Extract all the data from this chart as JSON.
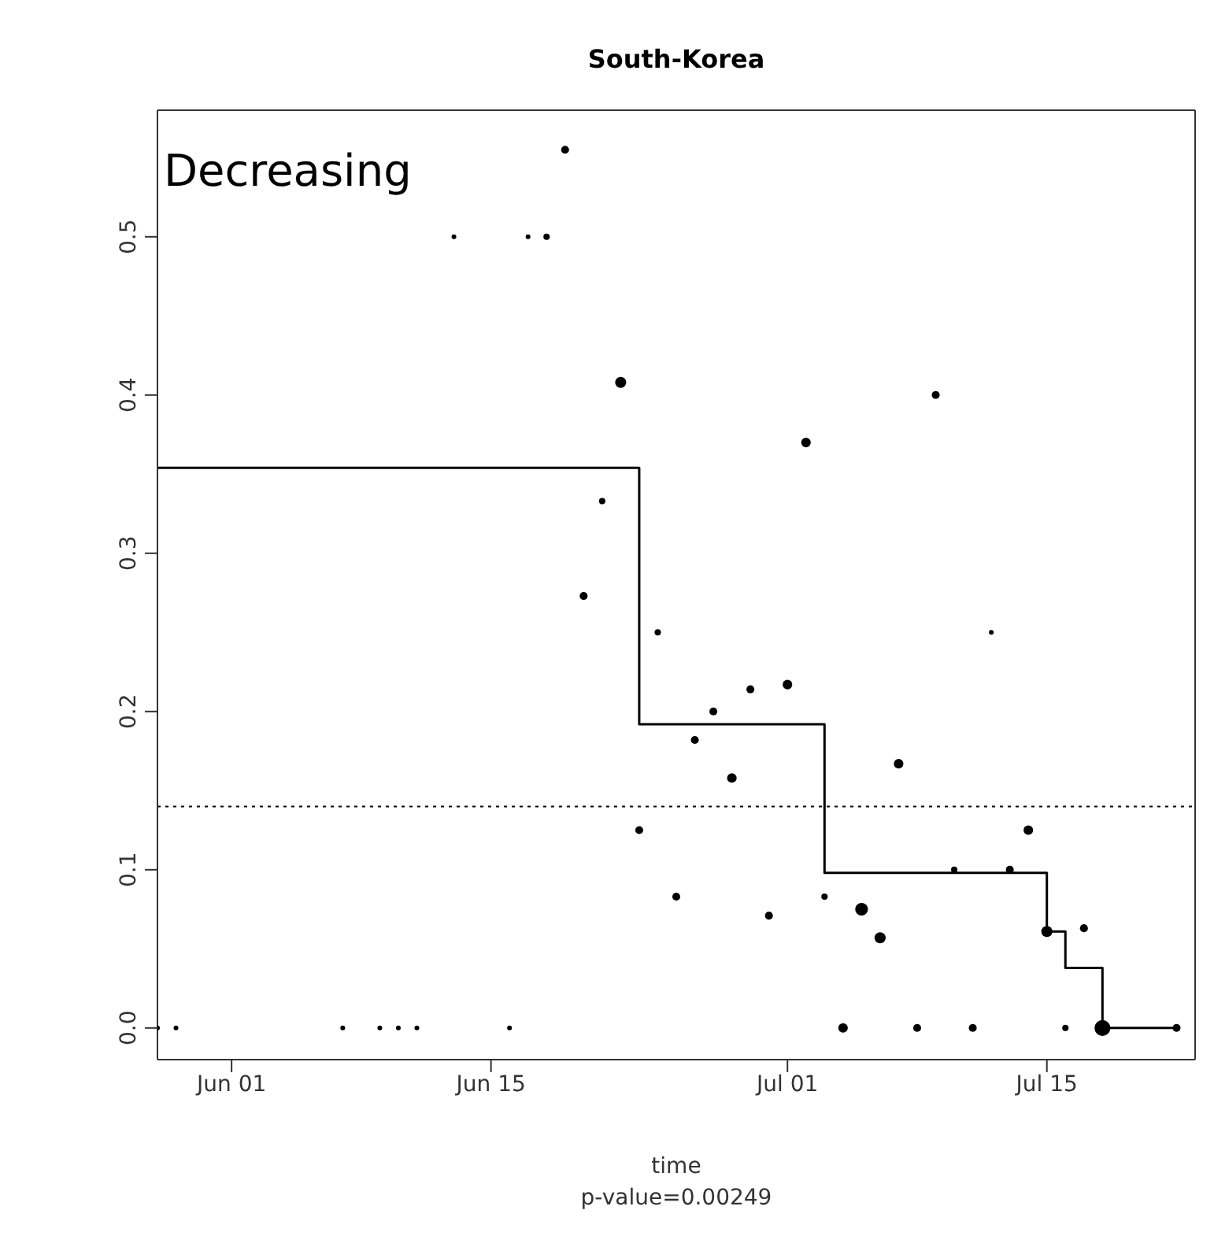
{
  "chart_data": {
    "type": "bubble",
    "title": "South-Korea",
    "xlabel": "time",
    "annotations": [
      "Decreasing",
      "p-value=0.00249"
    ],
    "xlim": [
      "--05-28",
      "--07-23"
    ],
    "xticks": [
      {
        "value": "--06-01",
        "label": "Jun 01"
      },
      {
        "value": "--06-15",
        "label": "Jun 15"
      },
      {
        "value": "--07-01",
        "label": "Jul 01"
      },
      {
        "value": "--07-15",
        "label": "Jul 15"
      }
    ],
    "ylim": [
      -0.02,
      0.58
    ],
    "yticks": [
      {
        "value": 0,
        "label": "0.0"
      },
      {
        "value": 0.1,
        "label": "0.1"
      },
      {
        "value": 0.2,
        "label": "0.2"
      },
      {
        "value": 0.3,
        "label": "0.3"
      },
      {
        "value": 0.4,
        "label": "0.4"
      },
      {
        "value": 0.5,
        "label": "0.5"
      }
    ],
    "legend": false,
    "ref_lines": [
      {
        "axis": "y",
        "value": 0.14,
        "line_style": "dotted",
        "color": "#000000"
      }
    ],
    "series": [
      {
        "color": "#000000",
        "marker": "circle",
        "x": [
          "--05-28",
          "--05-29",
          "--06-07",
          "--06-09",
          "--06-10",
          "--06-11",
          "--06-13",
          "--06-16",
          "--06-17",
          "--06-18",
          "--06-19",
          "--06-20",
          "--06-21",
          "--06-22",
          "--06-23",
          "--06-24",
          "--06-25",
          "--06-26",
          "--06-27",
          "--06-28",
          "--06-29",
          "--06-30",
          "--07-01",
          "--07-02",
          "--07-03",
          "--07-04",
          "--07-05",
          "--07-06",
          "--07-07",
          "--07-08",
          "--07-09",
          "--07-10",
          "--07-11",
          "--07-12",
          "--07-13",
          "--07-14",
          "--07-15",
          "--07-16",
          "--07-17",
          "--07-18",
          "--07-22"
        ],
        "values": [
          0,
          0,
          0,
          0,
          0,
          0,
          0.5,
          0,
          0.5,
          0.5,
          0.555,
          0.273,
          0.333,
          0.408,
          0.125,
          0.25,
          0.083,
          0.182,
          0.2,
          0.158,
          0.214,
          0.071,
          0.217,
          0.37,
          0.083,
          0,
          0.075,
          0.057,
          0.167,
          0,
          0.4,
          0.1,
          0,
          0.25,
          0.1,
          0.125,
          0.061,
          0,
          0.063,
          0,
          0
        ],
        "sizes": [
          0.09,
          0.09,
          0.09,
          0.09,
          0.09,
          0.09,
          0.09,
          0.09,
          0.09,
          0.16,
          0.25,
          0.25,
          0.16,
          0.49,
          0.25,
          0.16,
          0.25,
          0.25,
          0.25,
          0.36,
          0.25,
          0.25,
          0.36,
          0.36,
          0.16,
          0.36,
          0.64,
          0.49,
          0.36,
          0.25,
          0.25,
          0.16,
          0.25,
          0.09,
          0.25,
          0.36,
          0.49,
          0.16,
          0.25,
          1,
          0.25
        ]
      },
      {
        "type": "step",
        "color": "#000000",
        "line_style": "solid",
        "x": [
          "--05-28",
          "--06-23",
          "--07-03",
          "--07-15",
          "--07-16",
          "--07-18",
          "--07-22"
        ],
        "values": [
          0.354,
          0.192,
          0.098,
          0.061,
          0.038,
          0,
          0
        ]
      }
    ]
  }
}
